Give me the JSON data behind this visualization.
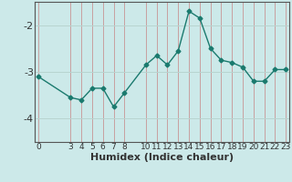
{
  "x": [
    0,
    3,
    4,
    5,
    6,
    7,
    8,
    10,
    11,
    12,
    13,
    14,
    15,
    16,
    17,
    18,
    19,
    20,
    21,
    22,
    23
  ],
  "y": [
    -3.1,
    -3.55,
    -3.6,
    -3.35,
    -3.35,
    -3.75,
    -3.45,
    -2.85,
    -2.65,
    -2.85,
    -2.55,
    -1.7,
    -1.85,
    -2.5,
    -2.75,
    -2.8,
    -2.9,
    -3.2,
    -3.2,
    -2.95,
    -2.95
  ],
  "xlim": [
    -0.3,
    23.3
  ],
  "ylim": [
    -4.5,
    -1.5
  ],
  "yticks": [
    -4,
    -3,
    -2
  ],
  "xticks": [
    0,
    3,
    4,
    5,
    6,
    7,
    8,
    10,
    11,
    12,
    13,
    14,
    15,
    16,
    17,
    18,
    19,
    20,
    21,
    22,
    23
  ],
  "xlabel": "Humidex (Indice chaleur)",
  "line_color": "#1a7a6e",
  "marker": "D",
  "marker_size": 2.5,
  "bg_color": "#cce9e9",
  "grid_color_v": "#c8a0a0",
  "grid_color_h": "#b8d4d0",
  "tick_color": "#333333",
  "xlabel_fontsize": 8,
  "ytick_fontsize": 8,
  "xtick_fontsize": 6.5,
  "spine_color": "#555555"
}
